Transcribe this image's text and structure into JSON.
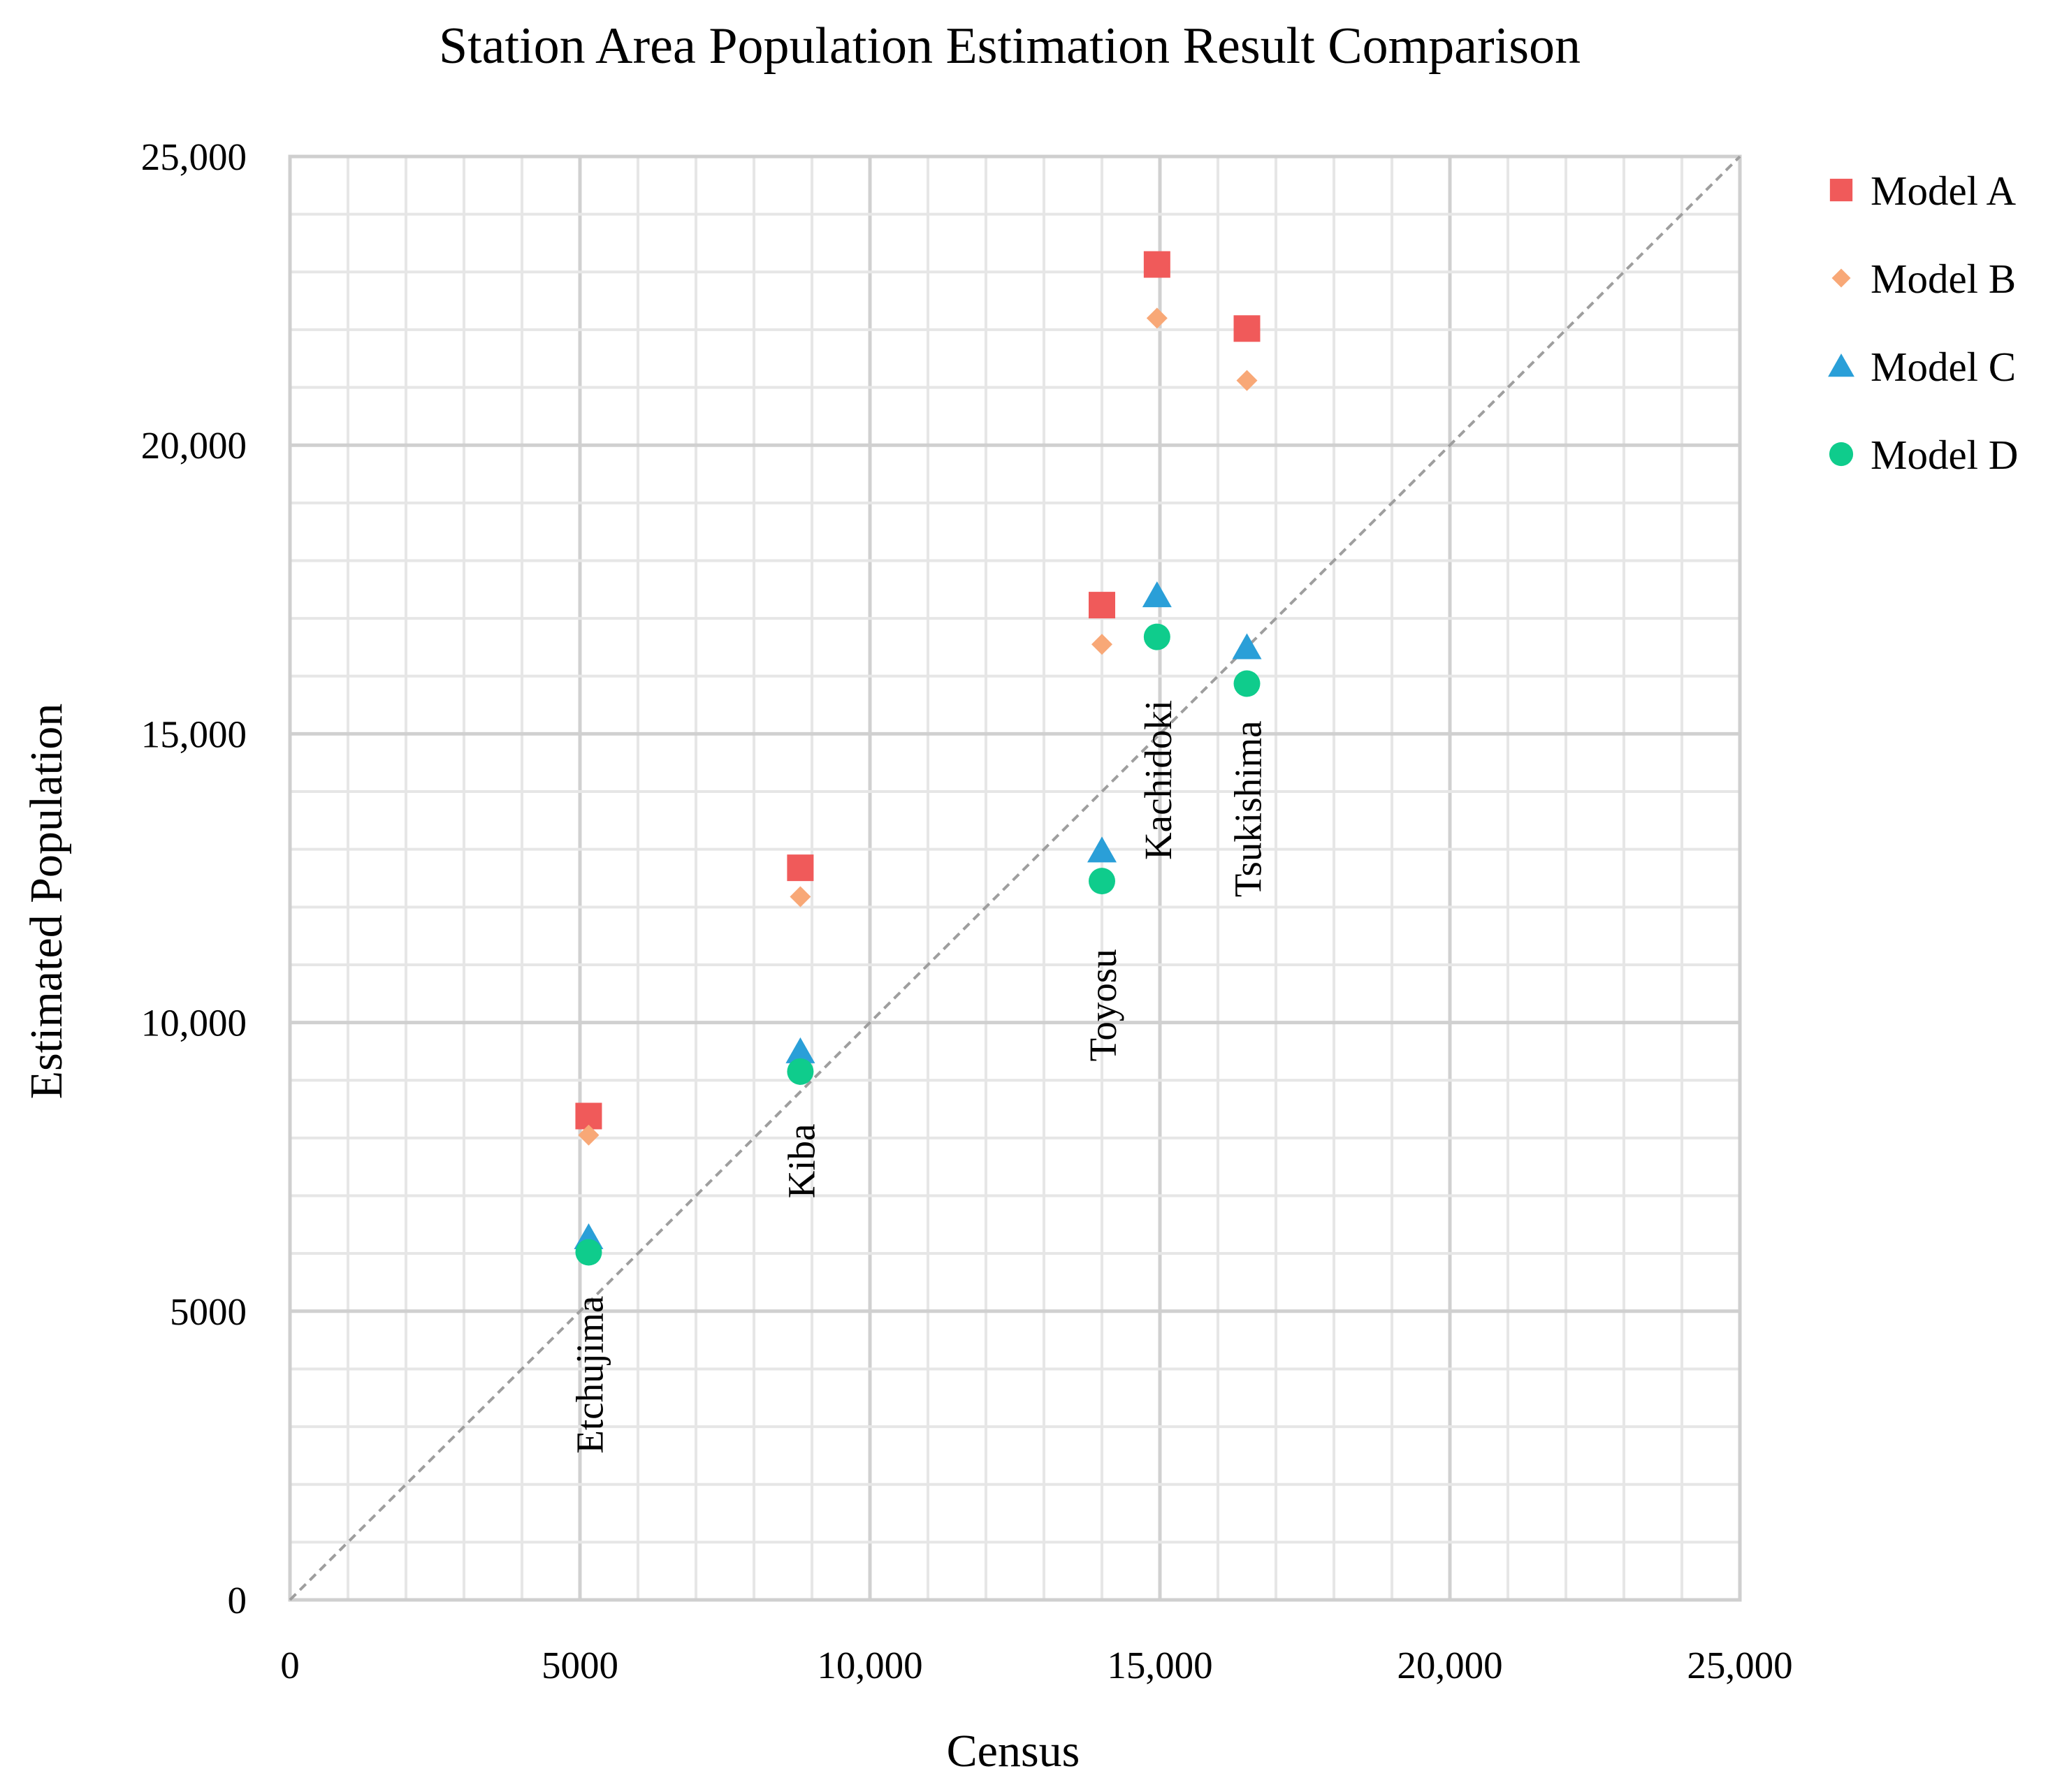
{
  "chart_data": {
    "type": "scatter",
    "title": "Station Area Population Estimation Result Comparison",
    "xlabel": "Census",
    "ylabel": "Estimated Population",
    "xlim": [
      0,
      25000
    ],
    "ylim": [
      0,
      25000
    ],
    "x_ticks": [
      {
        "value": 0,
        "label": "0"
      },
      {
        "value": 5000,
        "label": "5000"
      },
      {
        "value": 10000,
        "label": "10,000"
      },
      {
        "value": 15000,
        "label": "15,000"
      },
      {
        "value": 20000,
        "label": "20,000"
      },
      {
        "value": 25000,
        "label": "25,000"
      }
    ],
    "y_ticks": [
      {
        "value": 0,
        "label": "0"
      },
      {
        "value": 5000,
        "label": "5000"
      },
      {
        "value": 10000,
        "label": "10,000"
      },
      {
        "value": 15000,
        "label": "15,000"
      },
      {
        "value": 20000,
        "label": "20,000"
      },
      {
        "value": 25000,
        "label": "25,000"
      }
    ],
    "grid": true,
    "minor_grid_step": 1000,
    "major_grid_step": 5000,
    "reference_line": {
      "style": "dashed",
      "from": [
        0,
        0
      ],
      "to": [
        25000,
        25000
      ],
      "color": "#9e9e9e"
    },
    "legend_position": "right",
    "series": [
      {
        "name": "Model A",
        "marker": "square",
        "color": "#f05a5a",
        "points": [
          [
            5150,
            8380
          ],
          [
            8800,
            12680
          ],
          [
            14000,
            17230
          ],
          [
            14950,
            23130
          ],
          [
            16500,
            22020
          ]
        ]
      },
      {
        "name": "Model B",
        "marker": "diamond",
        "color": "#f8a877",
        "points": [
          [
            5150,
            8050
          ],
          [
            8800,
            12180
          ],
          [
            14000,
            16550
          ],
          [
            14950,
            22200
          ],
          [
            16500,
            21120
          ]
        ]
      },
      {
        "name": "Model C",
        "marker": "triangle",
        "color": "#2a9fd8",
        "points": [
          [
            5150,
            6280
          ],
          [
            8800,
            9500
          ],
          [
            14000,
            12980
          ],
          [
            14950,
            17400
          ],
          [
            16500,
            16500
          ]
        ]
      },
      {
        "name": "Model D",
        "marker": "circle",
        "color": "#0fcc8c",
        "points": [
          [
            5150,
            6020
          ],
          [
            8800,
            9150
          ],
          [
            14000,
            12450
          ],
          [
            14950,
            16680
          ],
          [
            16500,
            15870
          ]
        ]
      }
    ],
    "annotations": [
      {
        "text": "Etchujima",
        "x": 5150
      },
      {
        "text": "Kiba",
        "x": 8800
      },
      {
        "text": "Toyosu",
        "x": 14000
      },
      {
        "text": "Kachidoki",
        "x": 14950
      },
      {
        "text": "Tsukishima",
        "x": 16500
      }
    ]
  }
}
